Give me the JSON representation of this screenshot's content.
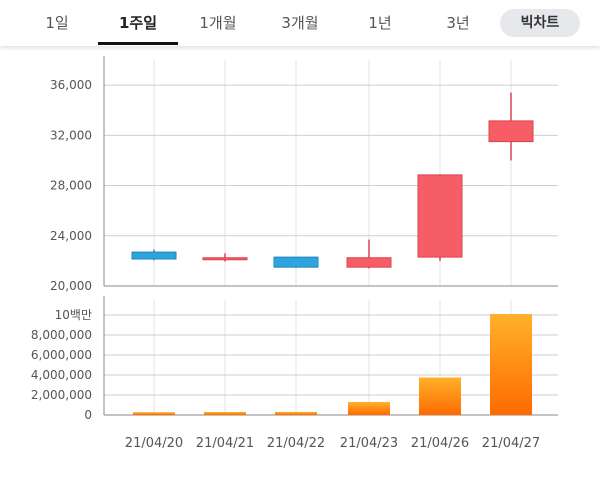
{
  "tabs": [
    {
      "label": "1일",
      "active": false
    },
    {
      "label": "1주일",
      "active": true
    },
    {
      "label": "1개월",
      "active": false
    },
    {
      "label": "3개월",
      "active": false
    },
    {
      "label": "1년",
      "active": false
    },
    {
      "label": "3년",
      "active": false
    }
  ],
  "badge": {
    "label": "빅차트"
  },
  "colors": {
    "up": "#f65d66",
    "down": "#2ea4dd",
    "volume_top": "#ffb12a",
    "volume_bottom": "#ff6a00",
    "grid": "#e3e3e3"
  },
  "chart_data": [
    {
      "type": "candlestick",
      "categories": [
        "21/04/20",
        "21/04/21",
        "21/04/22",
        "21/04/23",
        "21/04/26",
        "21/04/27"
      ],
      "ylim": [
        20000,
        38000
      ],
      "yticks": [
        20000,
        24000,
        28000,
        32000,
        36000
      ],
      "ytick_labels": [
        "20,000",
        "24,000",
        "28,000",
        "32,000",
        "36,000"
      ],
      "grid": true,
      "candles": [
        {
          "open": 22700,
          "close": 22150,
          "high": 22900,
          "low": 22050
        },
        {
          "open": 22100,
          "close": 22250,
          "high": 22600,
          "low": 21950
        },
        {
          "open": 22300,
          "close": 21500,
          "high": 22350,
          "low": 21450
        },
        {
          "open": 21500,
          "close": 22250,
          "high": 23700,
          "low": 21400
        },
        {
          "open": 22300,
          "close": 28850,
          "high": 28900,
          "low": 22000
        },
        {
          "open": 31500,
          "close": 33150,
          "high": 35400,
          "low": 30000
        }
      ]
    },
    {
      "type": "bar",
      "categories": [
        "21/04/20",
        "21/04/21",
        "21/04/22",
        "21/04/23",
        "21/04/26",
        "21/04/27"
      ],
      "values": [
        280000,
        300000,
        310000,
        1300000,
        3750000,
        10100000
      ],
      "ylim": [
        0,
        11500000
      ],
      "yticks": [
        0,
        2000000,
        4000000,
        6000000,
        8000000,
        10000000
      ],
      "ytick_labels": [
        "0",
        "2,000,000",
        "4,000,000",
        "6,000,000",
        "8,000,000",
        "10백만"
      ],
      "grid": true
    }
  ]
}
